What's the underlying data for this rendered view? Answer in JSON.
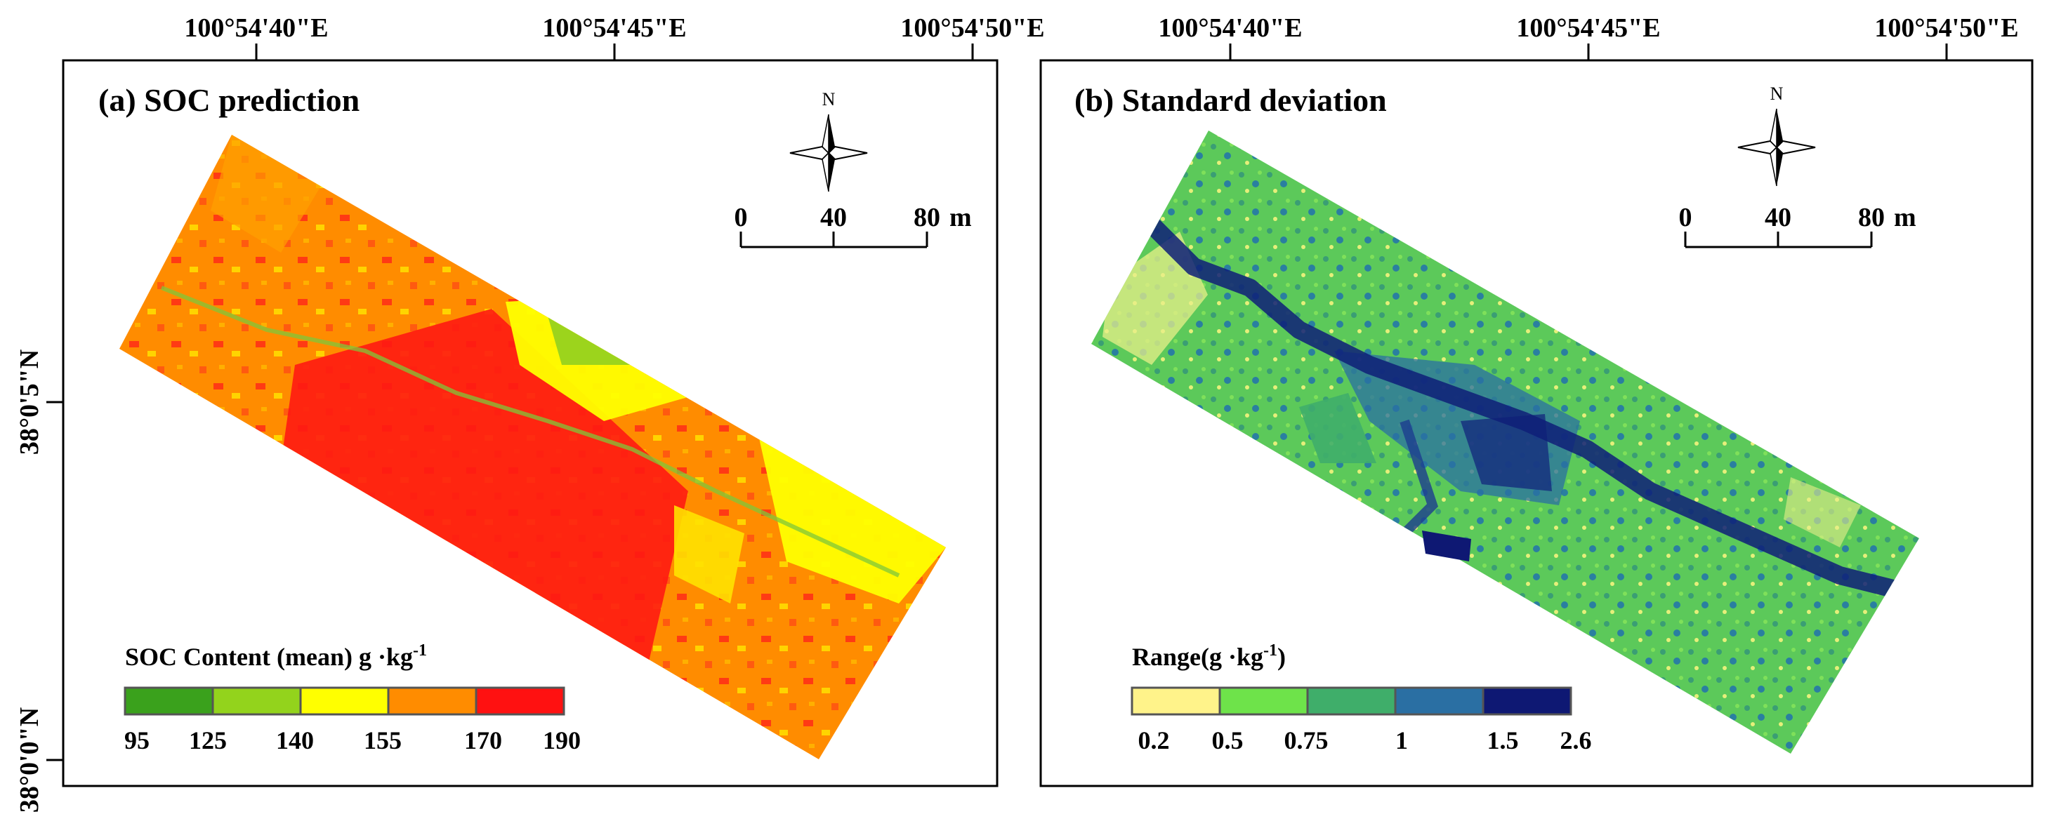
{
  "top_axis": {
    "left_ticks": [
      "100°54'40\"E",
      "100°54'45\"E",
      "100°54'50\"E"
    ],
    "right_ticks": [
      "100°54'40\"E",
      "100°54'45\"E",
      "100°54'50\"E"
    ]
  },
  "left_axis": {
    "ticks": [
      "38°0'5\"N",
      "38°0'0\"N"
    ]
  },
  "panels": [
    {
      "title": "(a) SOC prediction",
      "north": "N",
      "scale": {
        "labels": [
          "0",
          "40",
          "80"
        ],
        "unit": "m"
      },
      "legend": {
        "title": "SOC Content  (mean) g ·kg",
        "title_sup": "-1",
        "breaks": [
          "95",
          "125",
          "140",
          "155",
          "170",
          "190"
        ],
        "colors": [
          "#3aa11c",
          "#93d31c",
          "#ffff00",
          "#ff8c00",
          "#ff1111"
        ]
      }
    },
    {
      "title": "(b) Standard deviation",
      "north": "N",
      "scale": {
        "labels": [
          "0",
          "40",
          "80"
        ],
        "unit": "m"
      },
      "legend": {
        "title": "Range(g ·kg",
        "title_sup": "-1",
        "title_end": ")",
        "breaks": [
          "0.2",
          "0.5",
          "0.75",
          "1",
          "1.5",
          "2.6"
        ],
        "colors": [
          "#fff38a",
          "#6ee34a",
          "#3fae6a",
          "#2a6fa3",
          "#0e1873"
        ]
      }
    }
  ],
  "palette": {
    "soc_background": "#ff8c00",
    "sd_background": "#5cc95a",
    "frame": "#000000"
  }
}
